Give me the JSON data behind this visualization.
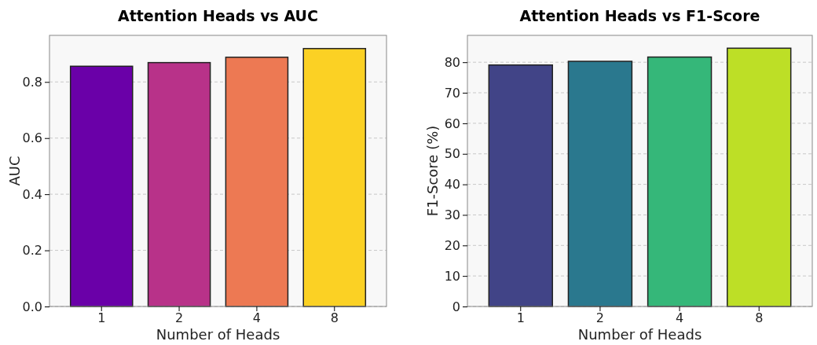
{
  "chart_data": [
    {
      "type": "bar",
      "title": "Attention Heads vs AUC",
      "xlabel": "Number of Heads",
      "ylabel": "AUC",
      "categories": [
        "1",
        "2",
        "4",
        "8"
      ],
      "values": [
        0.856,
        0.869,
        0.888,
        0.919
      ],
      "colors": [
        "#6a00a8",
        "#b83289",
        "#ed7953",
        "#fbd124"
      ],
      "ylim": [
        0,
        0.966
      ],
      "yticks": [
        {
          "value": 0,
          "label": "0.0"
        },
        0.2,
        0.4,
        0.6,
        0.8
      ],
      "grid": "y"
    },
    {
      "type": "bar",
      "title": "Attention Heads vs F1-Score",
      "xlabel": "Number of Heads",
      "ylabel": "F1-Score (%)",
      "categories": [
        "1",
        "2",
        "4",
        "8"
      ],
      "values": [
        79.1,
        80.3,
        81.7,
        84.6
      ],
      "colors": [
        "#414487",
        "#2a788e",
        "#35b779",
        "#bddf26"
      ],
      "ylim": [
        0,
        88.8
      ],
      "yticks": [
        0,
        10,
        20,
        30,
        40,
        50,
        60,
        70,
        80
      ],
      "grid": "y"
    }
  ]
}
